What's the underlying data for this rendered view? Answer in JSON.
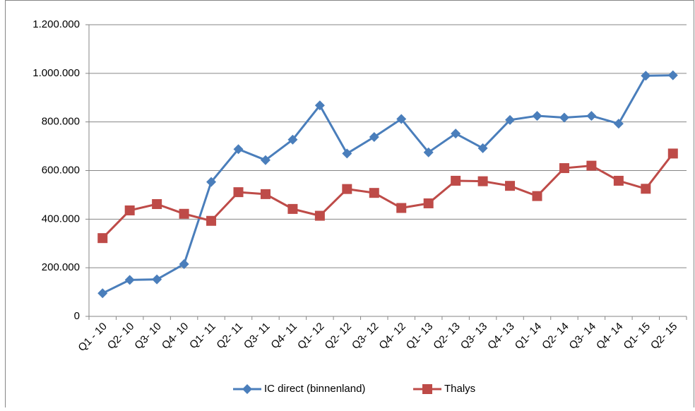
{
  "chart_data": {
    "type": "line",
    "categories": [
      "Q1 - 10",
      "Q2- 10",
      "Q3- 10",
      "Q4- 10",
      "Q1- 11",
      "Q2- 11",
      "Q3- 11",
      "Q4- 11",
      "Q1- 12",
      "Q2- 12",
      "Q3- 12",
      "Q4- 12",
      "Q1- 13",
      "Q2- 13",
      "Q3- 13",
      "Q4- 13",
      "Q1- 14",
      "Q2- 14",
      "Q3- 14",
      "Q4- 14",
      "Q1- 15",
      "Q2- 15"
    ],
    "series": [
      {
        "name": "IC direct (binnenland)",
        "color": "#4a7ebb",
        "marker": "diamond",
        "values": [
          95000,
          150000,
          152000,
          215000,
          553000,
          688000,
          643000,
          727000,
          868000,
          670000,
          738000,
          812000,
          675000,
          752000,
          692000,
          808000,
          825000,
          818000,
          825000,
          793000,
          990000,
          992000
        ]
      },
      {
        "name": "Thalys",
        "color": "#be4b48",
        "marker": "square",
        "values": [
          322000,
          436000,
          462000,
          422000,
          393000,
          511000,
          503000,
          442000,
          414000,
          524000,
          508000,
          446000,
          465000,
          558000,
          556000,
          537000,
          495000,
          610000,
          620000,
          558000,
          525000,
          670000
        ]
      }
    ],
    "ylim": [
      0,
      1200000
    ],
    "yticks": [
      0,
      {
        "value": 200000,
        "label": "200.000"
      },
      {
        "value": 400000,
        "label": "400.000"
      },
      {
        "value": 600000,
        "label": "600.000"
      },
      {
        "value": 800000,
        "label": "800.000"
      },
      {
        "value": 1000000,
        "label": "1.000.000"
      },
      {
        "value": 1200000,
        "label": "1.200.000"
      }
    ],
    "grid": true,
    "legend": "bottom"
  }
}
